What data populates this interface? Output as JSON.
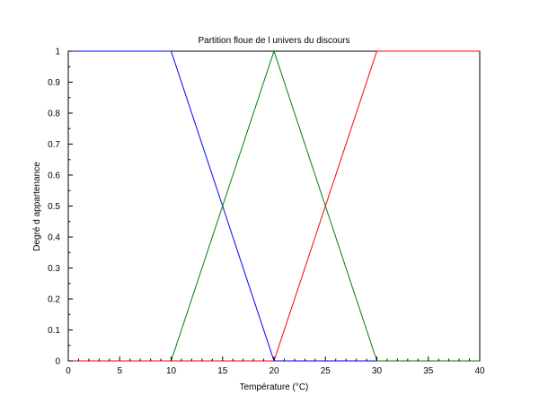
{
  "chart_data": {
    "type": "line",
    "title": "Partition floue de l univers du discours",
    "xlabel": "Température (°C)",
    "ylabel": "Degré d appartenance",
    "xlim": [
      0,
      40
    ],
    "ylim": [
      0,
      1
    ],
    "x_ticks": [
      "0",
      "5",
      "10",
      "15",
      "20",
      "25",
      "30",
      "35",
      "40"
    ],
    "y_ticks": [
      "0",
      "0.1",
      "0.2",
      "0.3",
      "0.4",
      "0.5",
      "0.6",
      "0.7",
      "0.8",
      "0.9",
      "1"
    ],
    "grid": false,
    "legend": "none",
    "series": [
      {
        "color": "#0000ff",
        "x": [
          0,
          10,
          20,
          30,
          40
        ],
        "y": [
          1,
          1,
          0,
          0,
          0
        ]
      },
      {
        "color": "#008000",
        "x": [
          0,
          10,
          20,
          30,
          40
        ],
        "y": [
          0,
          0,
          1,
          0,
          0
        ]
      },
      {
        "color": "#ff0000",
        "x": [
          0,
          10,
          20,
          30,
          40
        ],
        "y": [
          0,
          0,
          0,
          1,
          1
        ]
      }
    ]
  }
}
